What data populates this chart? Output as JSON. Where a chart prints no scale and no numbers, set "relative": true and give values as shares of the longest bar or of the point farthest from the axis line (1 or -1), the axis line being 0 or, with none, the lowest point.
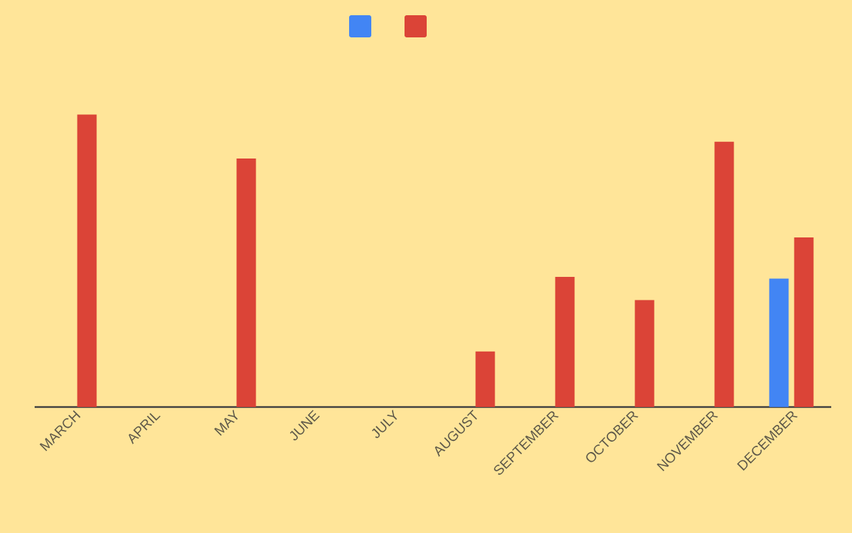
{
  "chart_data": {
    "type": "bar",
    "relative": true,
    "categories": [
      "MARCH",
      "APRIL",
      "MAY",
      "JUNE",
      "JULY",
      "AUGUST",
      "SEPTEMBER",
      "OCTOBER",
      "NOVEMBER",
      "DECEMBER"
    ],
    "series": [
      {
        "color": "#4285f4",
        "values": [
          null,
          null,
          null,
          null,
          null,
          null,
          null,
          null,
          null,
          0.439
        ]
      },
      {
        "color": "#db4437",
        "values": [
          1,
          null,
          0.85,
          null,
          null,
          0.19,
          0.445,
          0.366,
          0.907,
          0.58
        ]
      }
    ],
    "legend": false
  }
}
